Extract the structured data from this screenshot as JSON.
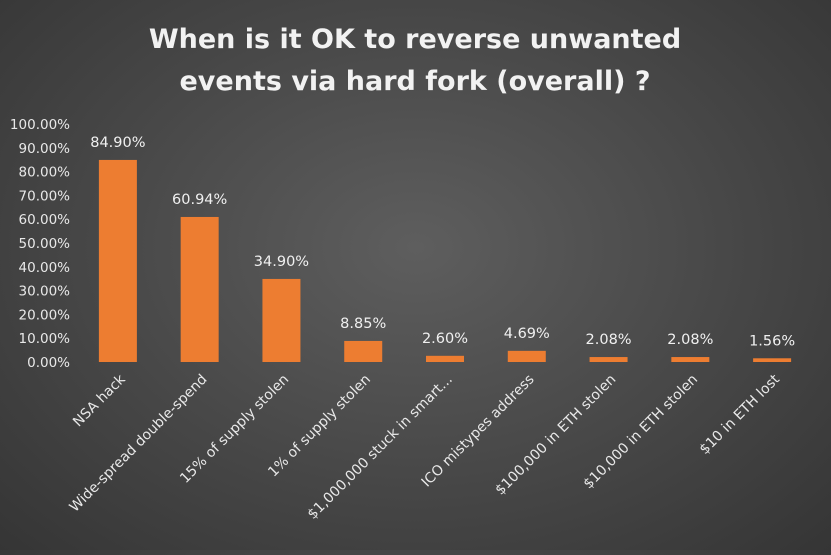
{
  "chart_data": {
    "type": "bar",
    "title_lines": [
      "When is it OK to reverse unwanted",
      "events via hard fork (overall) ?"
    ],
    "xlabel": "",
    "ylabel": "",
    "ylim": [
      0,
      100
    ],
    "yticks": [
      "0.00%",
      "10.00%",
      "20.00%",
      "30.00%",
      "40.00%",
      "50.00%",
      "60.00%",
      "70.00%",
      "80.00%",
      "90.00%",
      "100.00%"
    ],
    "categories": [
      "NSA hack",
      "Wide-spread double-spend",
      "15% of supply stolen",
      "1% of supply stolen",
      "$1,000,000 stuck in smart...",
      "ICO mistypes address",
      "$100,000 in ETH stolen",
      "$10,000 in ETH stolen",
      "$10 in ETH lost"
    ],
    "values": [
      84.9,
      60.94,
      34.9,
      8.85,
      2.6,
      4.69,
      2.08,
      2.08,
      1.56
    ],
    "data_labels": [
      "84.90%",
      "60.94%",
      "34.90%",
      "8.85%",
      "2.60%",
      "4.69%",
      "2.08%",
      "2.08%",
      "1.56%"
    ],
    "grid": false,
    "legend": "none",
    "colors": {
      "bar": "#ed7d31"
    }
  }
}
